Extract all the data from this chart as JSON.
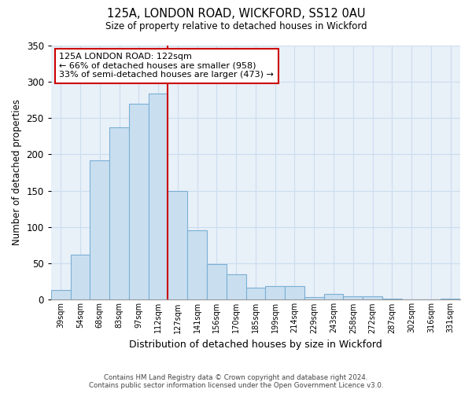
{
  "title": "125A, LONDON ROAD, WICKFORD, SS12 0AU",
  "subtitle": "Size of property relative to detached houses in Wickford",
  "xlabel": "Distribution of detached houses by size in Wickford",
  "ylabel": "Number of detached properties",
  "bar_labels": [
    "39sqm",
    "54sqm",
    "68sqm",
    "83sqm",
    "97sqm",
    "112sqm",
    "127sqm",
    "141sqm",
    "156sqm",
    "170sqm",
    "185sqm",
    "199sqm",
    "214sqm",
    "229sqm",
    "243sqm",
    "258sqm",
    "272sqm",
    "287sqm",
    "302sqm",
    "316sqm",
    "331sqm"
  ],
  "bar_values": [
    13,
    62,
    192,
    237,
    270,
    284,
    150,
    96,
    49,
    35,
    17,
    19,
    19,
    4,
    8,
    5,
    5,
    1,
    0,
    0,
    1
  ],
  "bar_color": "#c9dff0",
  "bar_edgecolor": "#7bafd4",
  "vline_x_index": 6,
  "vline_color": "#cc0000",
  "annotation_title": "125A LONDON ROAD: 122sqm",
  "annotation_line1": "← 66% of detached houses are smaller (958)",
  "annotation_line2": "33% of semi-detached houses are larger (473) →",
  "annotation_box_edgecolor": "#cc0000",
  "ylim": [
    0,
    350
  ],
  "yticks": [
    0,
    50,
    100,
    150,
    200,
    250,
    300,
    350
  ],
  "footer_line1": "Contains HM Land Registry data © Crown copyright and database right 2024.",
  "footer_line2": "Contains public sector information licensed under the Open Government Licence v3.0.",
  "background_color": "#ffffff",
  "grid_color": "#ccddee"
}
